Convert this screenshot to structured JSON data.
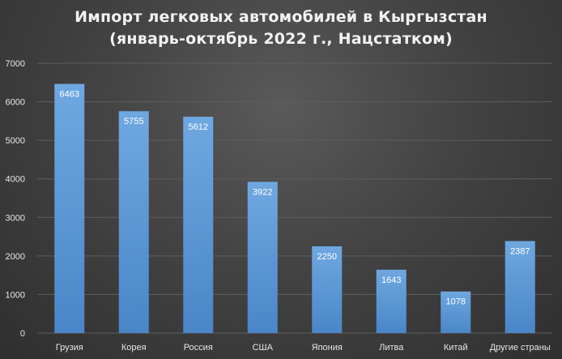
{
  "chart_data": {
    "type": "bar",
    "title_lines": [
      "Импорт легковых автомобилей в Кыргызстан",
      "(январь-октябрь 2022 г., Нацстатком)"
    ],
    "categories": [
      "Грузия",
      "Корея",
      "Россия",
      "США",
      "Япония",
      "Литва",
      "Китай",
      "Другие страны"
    ],
    "values": [
      6463,
      5755,
      5612,
      3922,
      2250,
      1643,
      1078,
      2387
    ],
    "data_labels": [
      "6463",
      "5755",
      "5612",
      "3922",
      "2250",
      "1643",
      "1078",
      "2387"
    ],
    "ylim": [
      0,
      7000
    ],
    "yticks": [
      0,
      1000,
      2000,
      3000,
      4000,
      5000,
      6000,
      7000
    ],
    "ytick_labels": [
      "0",
      "1000",
      "2000",
      "3000",
      "4000",
      "5000",
      "6000",
      "7000"
    ],
    "grid": true,
    "colors": {
      "bar_top": "#6fa8e0",
      "bar_bottom": "#4a86c8",
      "grid": "#5e5e5e",
      "text": "#e6e6e6"
    }
  }
}
